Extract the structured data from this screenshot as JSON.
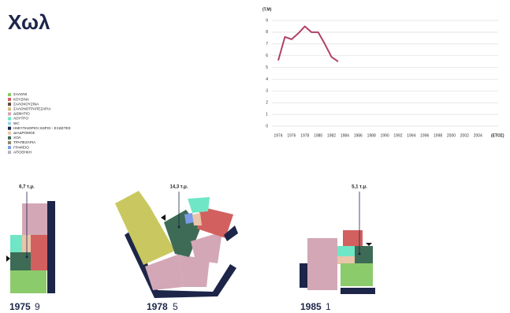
{
  "title": "Χωλ",
  "legend": [
    {
      "label": "ΣΑΛΟΝΙ",
      "color": "#8ccb6b"
    },
    {
      "label": "ΚΟΥΖΙΝΑ",
      "color": "#d2605f"
    },
    {
      "label": "ΣΑΛΟΚΟΥΖΙΝΑ",
      "color": "#5b4a3c"
    },
    {
      "label": "ΣΑΛΟΝΟΤΡΑΠΕΖΑΡΙΑ",
      "color": "#d6b57c"
    },
    {
      "label": "ΔΩΜΑΤΙΟ",
      "color": "#d3a7b6"
    },
    {
      "label": "ΛΟΥΤΡΟ",
      "color": "#6fe6c6"
    },
    {
      "label": "WC",
      "color": "#9ad3ea"
    },
    {
      "label": "ΗΜΙΥΠΑΙΘΡΙΟΙ ΧΩΡΟΙ - ΕΞΩΣΤΕΣ",
      "color": "#1d2549"
    },
    {
      "label": "ΔΙΑΔΡΟΜΟΣ",
      "color": "#e9c5aa"
    },
    {
      "label": "ΧΟΛ",
      "color": "#3e6b56"
    },
    {
      "label": "ΤΡΑΠΕΖΑΡΙΑ",
      "color": "#8b8a6b"
    },
    {
      "label": "ΓΡΑΦΕΙΟ",
      "color": "#7b9be9"
    },
    {
      "label": "ΑΠΟΘΗΚΗ",
      "color": "#b1b1c2"
    }
  ],
  "chart_data": {
    "type": "line",
    "ylabel": "(T.M)",
    "xlabel": "(ΕΤΟΣ)",
    "x": [
      1974,
      1975,
      1976,
      1977,
      1978,
      1979,
      1980,
      1981,
      1982,
      1983
    ],
    "series": [
      {
        "name": "ΧΟΛ",
        "color": "#b0406a",
        "values": [
          5.6,
          7.6,
          7.4,
          7.9,
          8.5,
          8.0,
          8.0,
          7.0,
          5.9,
          5.5
        ]
      }
    ],
    "xlim": [
      1974,
      2008
    ],
    "xticks": [
      1974,
      1976,
      1978,
      1980,
      1982,
      1984,
      1986,
      1988,
      1990,
      1992,
      1994,
      1996,
      1998,
      2000,
      2002,
      2004
    ],
    "ylim": [
      0,
      9
    ],
    "yticks": [
      0,
      1,
      2,
      3,
      4,
      5,
      6,
      7,
      8,
      9
    ],
    "grid": true
  },
  "plans": [
    {
      "area": "6,7 τ.μ.",
      "year": "1975",
      "code": "9"
    },
    {
      "area": "14,3 τ.μ.",
      "year": "1978",
      "code": "5"
    },
    {
      "area": "5,1 τ.μ.",
      "year": "1985",
      "code": "1"
    }
  ]
}
